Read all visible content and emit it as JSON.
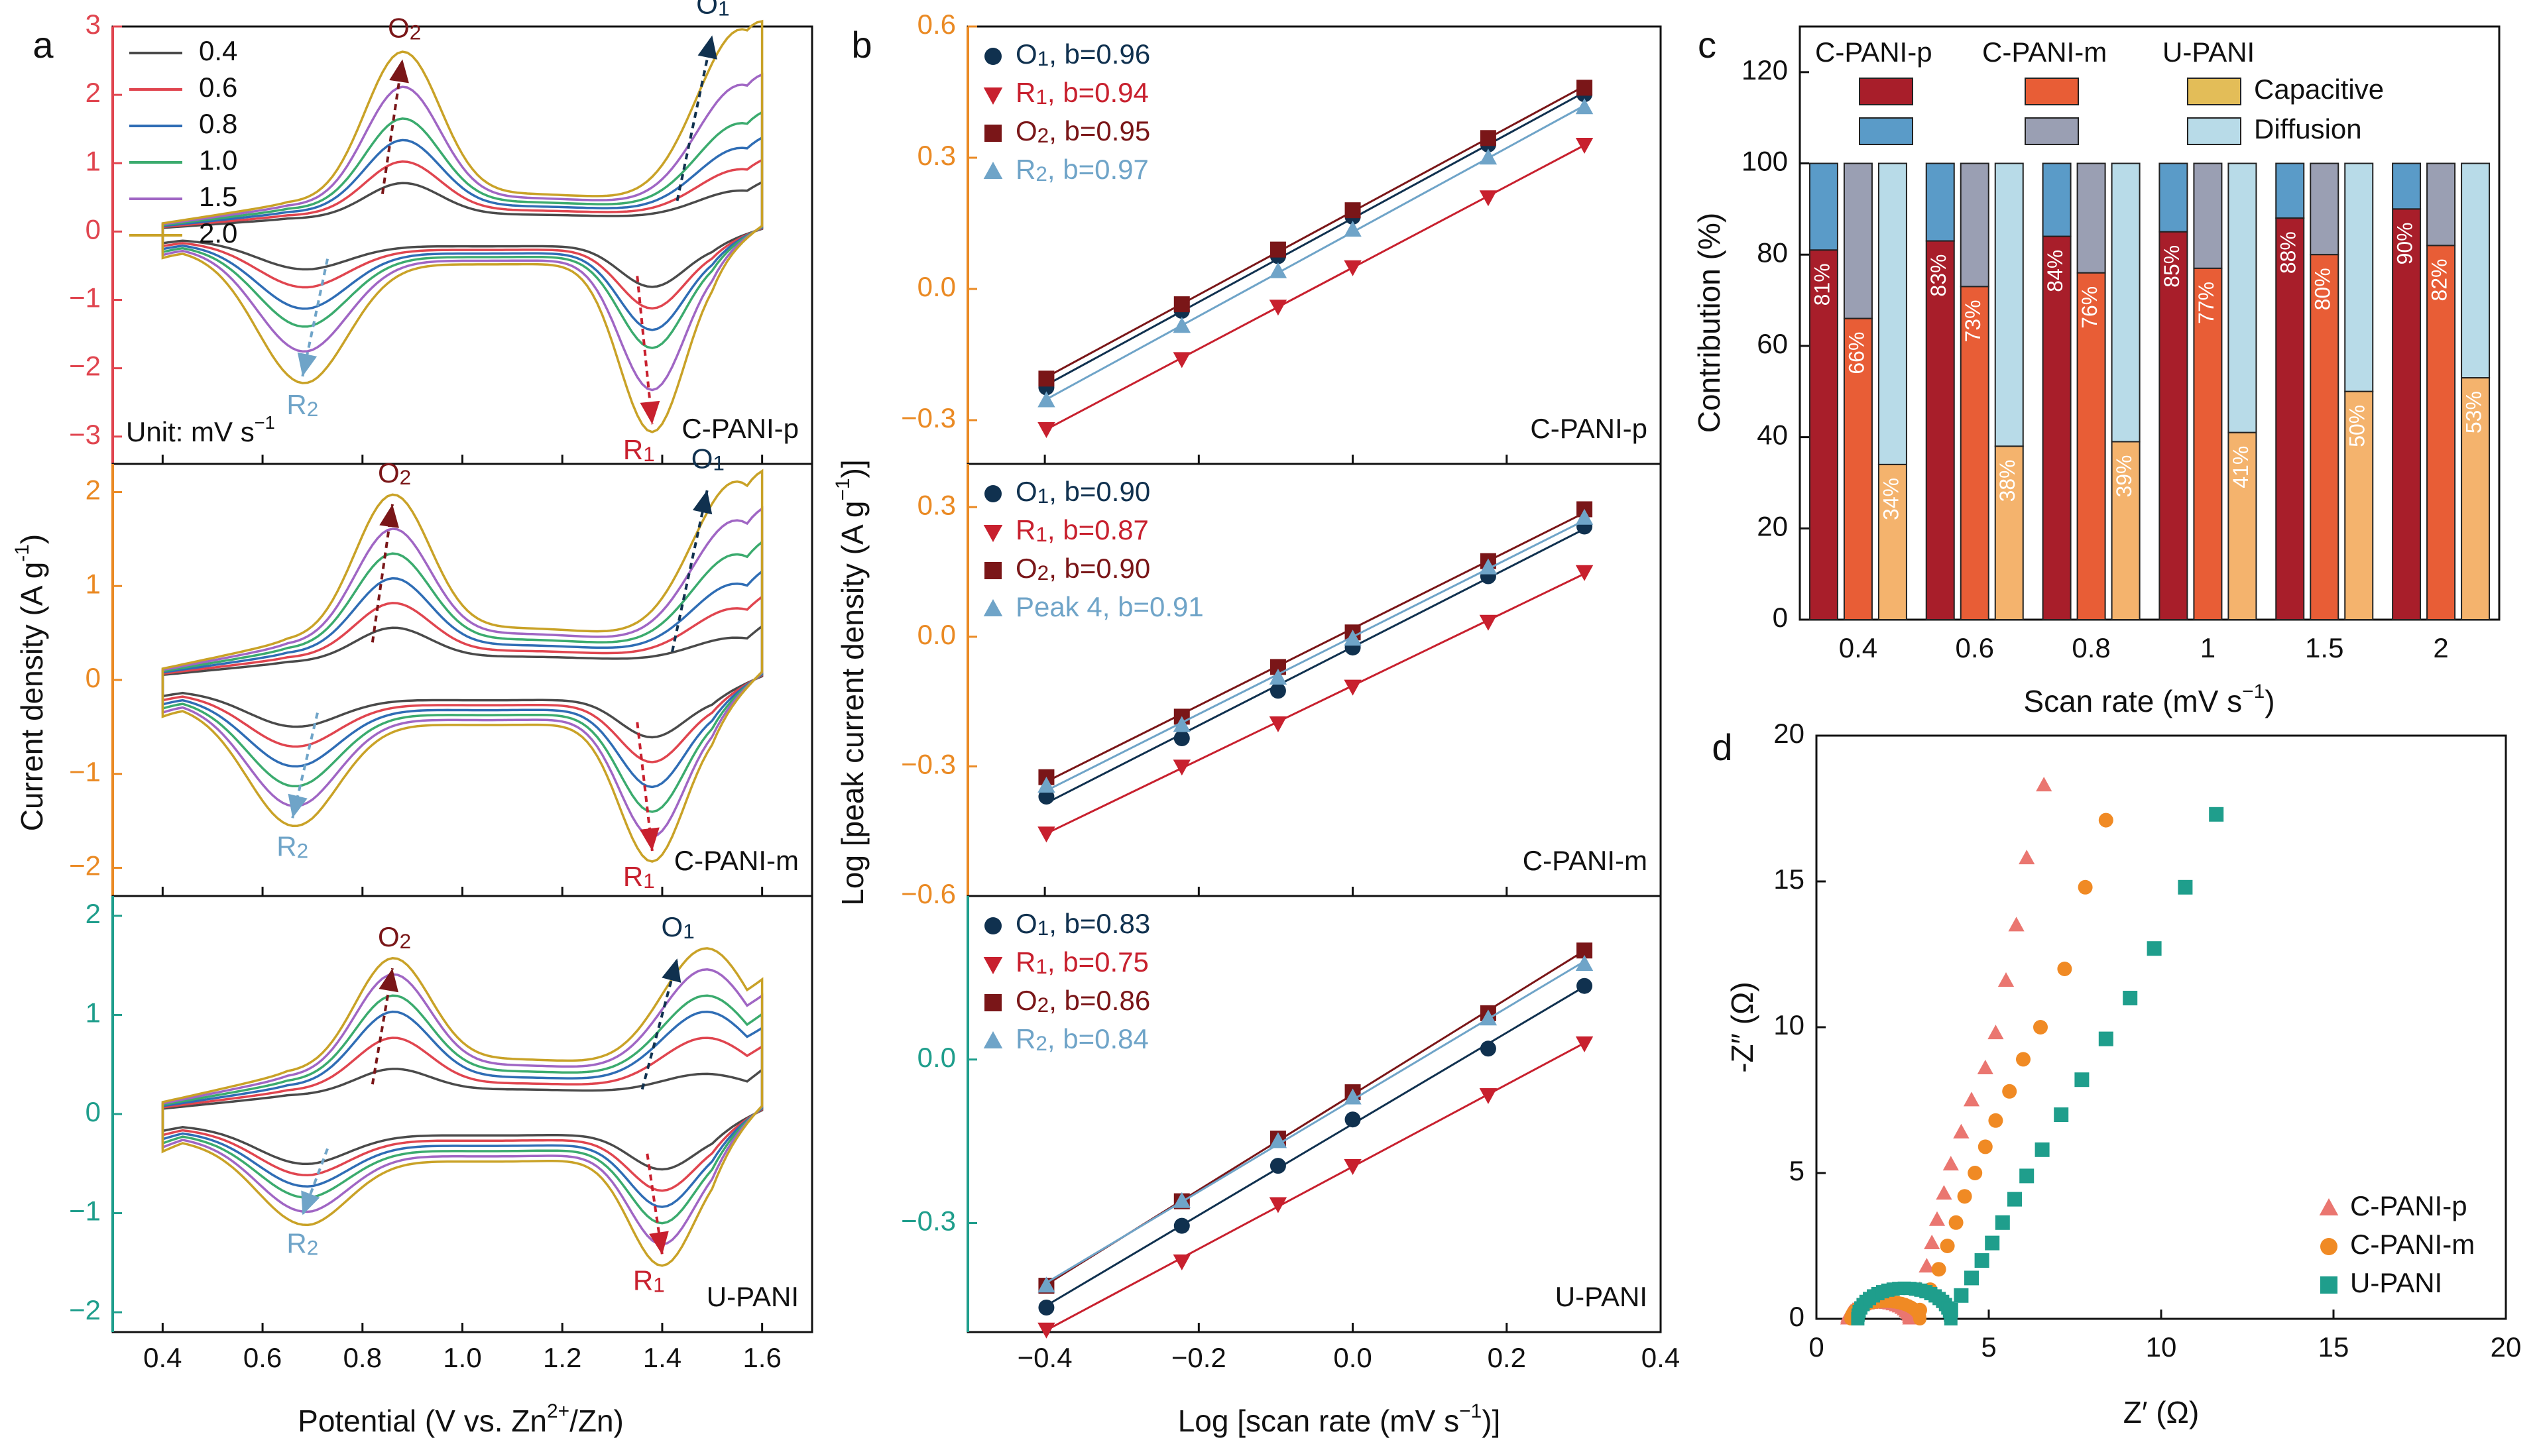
{
  "panel_letters": {
    "a": "a",
    "b": "b",
    "c": "c",
    "d": "d"
  },
  "colors": {
    "cv": {
      "0.4": "#4a4a4a",
      "0.6": "#e0454f",
      "0.8": "#2f6db5",
      "1.0": "#3bab6e",
      "1.5": "#a066c4",
      "2.0": "#c9a227"
    },
    "O1": "#10314f",
    "R1": "#c8202e",
    "O2": "#7a1618",
    "R2": "#6fa4c8",
    "axis_p": "#e0454f",
    "axis_m": "#ea8a24",
    "axis_u": "#1f9e8c",
    "cap_p": "#a81e2a",
    "diff_p": "#5a9bc8",
    "cap_m": "#e85d36",
    "diff_m": "#9a9fb3",
    "cap_u": "#f4b36d",
    "diff_u": "#b8dbe8",
    "legend_cap": "#e3bd58",
    "legend_diff": "#b8dbe8",
    "eis_p": "#ea7670",
    "eis_m": "#f08a24",
    "eis_u": "#1f9e8c"
  },
  "chart_data": [
    {
      "id": "a",
      "type": "line",
      "xlabel": "Potential (V vs. Zn2+/Zn)",
      "xlabel_parts": [
        "Potential (V vs. Zn",
        "2+",
        "/Zn)"
      ],
      "ylabel": "Current density (A g-1)",
      "ylabel_parts": [
        "Current density (A g",
        "-1",
        ")"
      ],
      "xlim": [
        0.3,
        1.7
      ],
      "xticks": [
        "0.4",
        "0.6",
        "0.8",
        "1.0",
        "1.2",
        "1.4",
        "1.6"
      ],
      "legend_title": "Unit: mV s−1",
      "legend_title_parts": [
        "Unit: mV s",
        "−1"
      ],
      "scan_rates": [
        "0.4",
        "0.6",
        "0.8",
        "1.0",
        "1.5",
        "2.0"
      ],
      "subplots": [
        {
          "name": "C-PANI-p",
          "ylim": [
            -3.4,
            3.0
          ],
          "yticks": [
            "-3",
            "-2",
            "-1",
            "0",
            "1",
            "2",
            "3"
          ],
          "O1": {
            "x": 1.6,
            "y": [
              0.55,
              0.85,
              1.15,
              1.5,
              2.05,
              2.85
            ]
          },
          "O2": {
            "x": 0.88,
            "y": [
              0.65,
              0.95,
              1.25,
              1.55,
              2.0,
              2.5
            ]
          },
          "R1": {
            "x": 1.38,
            "y": [
              -0.75,
              -1.05,
              -1.35,
              -1.6,
              -2.2,
              -2.8
            ]
          },
          "R2": {
            "x": 0.68,
            "y": [
              -0.5,
              -0.75,
              -1.05,
              -1.3,
              -1.65,
              -2.1
            ]
          },
          "peaks": {
            "O2": "O2",
            "O1": "O1",
            "R2": "R2",
            "R1": "R1"
          }
        },
        {
          "name": "C-PANI-m",
          "ylim": [
            -2.3,
            2.3
          ],
          "yticks": [
            "-2",
            "-1",
            "0",
            "1",
            "2"
          ],
          "O1": {
            "x": 1.59,
            "y": [
              0.4,
              0.7,
              0.95,
              1.25,
              1.6,
              2.0
            ]
          },
          "O2": {
            "x": 0.86,
            "y": [
              0.5,
              0.75,
              1.0,
              1.25,
              1.5,
              1.85
            ]
          },
          "R1": {
            "x": 1.38,
            "y": [
              -0.55,
              -0.8,
              -1.05,
              -1.3,
              -1.55,
              -1.8
            ]
          },
          "R2": {
            "x": 0.66,
            "y": [
              -0.45,
              -0.65,
              -0.85,
              -1.05,
              -1.25,
              -1.45
            ]
          },
          "peaks": {
            "O2": "O2",
            "O1": "O1",
            "R2": "R2",
            "R1": "R1"
          }
        },
        {
          "name": "U-PANI",
          "ylim": [
            -2.2,
            2.2
          ],
          "yticks": [
            "-2",
            "-1",
            "0",
            "1",
            "2"
          ],
          "O1": {
            "x": 1.53,
            "y": [
              0.35,
              0.7,
              0.95,
              1.1,
              1.35,
              1.55
            ]
          },
          "O2": {
            "x": 0.86,
            "y": [
              0.4,
              0.7,
              0.95,
              1.1,
              1.3,
              1.45
            ]
          },
          "R1": {
            "x": 1.4,
            "y": [
              -0.5,
              -0.7,
              -0.85,
              -1.0,
              -1.2,
              -1.4
            ]
          },
          "R2": {
            "x": 0.68,
            "y": [
              -0.45,
              -0.55,
              -0.65,
              -0.75,
              -0.88,
              -1.0
            ]
          },
          "peaks": {
            "O2": "O2",
            "O1": "O1",
            "R2": "R2",
            "R1": "R1"
          }
        }
      ]
    },
    {
      "id": "b",
      "type": "scatter",
      "xlabel": "Log [scan rate (mV s−1)]",
      "xlabel_parts": [
        "Log [scan rate (mV s",
        "−1",
        ")]"
      ],
      "ylabel": "Log [peak current density (A g−1)]",
      "ylabel_parts": [
        "Log [peak current density (A g",
        "−1",
        ")]"
      ],
      "xlim": [
        -0.5,
        0.4
      ],
      "xticks": [
        "-0.4",
        "-0.2",
        "0.0",
        "0.2",
        "0.4"
      ],
      "x": [
        -0.398,
        -0.222,
        -0.097,
        0.0,
        0.176,
        0.301
      ],
      "subplots": [
        {
          "name": "C-PANI-p",
          "ylim": [
            -0.4,
            0.6
          ],
          "yticks": [
            "-0.3",
            "0.0",
            "0.3",
            "0.6"
          ],
          "series": [
            {
              "key": "O1",
              "label": "O1, b=0.96",
              "values": [
                -0.225,
                -0.05,
                0.075,
                0.165,
                0.33,
                0.445
              ]
            },
            {
              "key": "R1",
              "label": "R1, b=0.94",
              "values": [
                -0.32,
                -0.16,
                -0.04,
                0.05,
                0.21,
                0.33
              ]
            },
            {
              "key": "O2",
              "label": "O2, b=0.95",
              "values": [
                -0.205,
                -0.035,
                0.09,
                0.18,
                0.345,
                0.46
              ]
            },
            {
              "key": "R2",
              "label": "R2, b=0.97",
              "values": [
                -0.255,
                -0.085,
                0.04,
                0.135,
                0.3,
                0.415
              ]
            }
          ]
        },
        {
          "name": "C-PANI-m",
          "ylim": [
            -0.6,
            0.4
          ],
          "yticks": [
            "-0.6",
            "-0.3",
            "0.0",
            "0.3"
          ],
          "series": [
            {
              "key": "O1",
              "label": "O1, b=0.90",
              "values": [
                -0.37,
                -0.235,
                -0.125,
                -0.025,
                0.14,
                0.255
              ]
            },
            {
              "key": "R1",
              "label": "R1, b=0.87",
              "values": [
                -0.455,
                -0.3,
                -0.2,
                -0.115,
                0.035,
                0.15
              ]
            },
            {
              "key": "O2",
              "label": "O2, b=0.90",
              "values": [
                -0.325,
                -0.185,
                -0.07,
                0.01,
                0.175,
                0.295
              ]
            },
            {
              "key": "R2",
              "label": "Peak 4, b=0.91",
              "values": [
                -0.345,
                -0.205,
                -0.095,
                -0.005,
                0.16,
                0.275
              ]
            }
          ]
        },
        {
          "name": "U-PANI",
          "ylim": [
            -0.5,
            0.3
          ],
          "yticks": [
            "-0.3",
            "0.0"
          ],
          "series": [
            {
              "key": "O1",
              "label": "O1, b=0.83",
              "values": [
                -0.455,
                -0.305,
                -0.195,
                -0.11,
                0.02,
                0.135
              ]
            },
            {
              "key": "R1",
              "label": "R1, b=0.75",
              "values": [
                -0.495,
                -0.37,
                -0.265,
                -0.195,
                -0.065,
                0.03
              ]
            },
            {
              "key": "O2",
              "label": "O2, b=0.86",
              "values": [
                -0.415,
                -0.26,
                -0.145,
                -0.06,
                0.085,
                0.2
              ]
            },
            {
              "key": "R2",
              "label": "R2, b=0.84",
              "values": [
                -0.415,
                -0.26,
                -0.15,
                -0.07,
                0.075,
                0.175
              ]
            }
          ]
        }
      ]
    },
    {
      "id": "c",
      "type": "bar",
      "title": "",
      "xlabel": "Scan rate (mV s−1)",
      "xlabel_parts": [
        "Scan rate (mV s",
        "−1",
        ")"
      ],
      "ylabel": "Contribution (%)",
      "ylim": [
        0,
        130
      ],
      "yticks": [
        "0",
        "20",
        "40",
        "60",
        "80",
        "100",
        "120"
      ],
      "categories": [
        "0.4",
        "0.6",
        "0.8",
        "1",
        "1.5",
        "2"
      ],
      "series": [
        {
          "name": "C-PANI-p",
          "capacitive": [
            81,
            83,
            84,
            85,
            88,
            90
          ],
          "labels": [
            "81%",
            "83%",
            "84%",
            "85%",
            "88%",
            "90%"
          ]
        },
        {
          "name": "C-PANI-m",
          "capacitive": [
            66,
            73,
            76,
            77,
            80,
            82
          ],
          "labels": [
            "66%",
            "73%",
            "76%",
            "77%",
            "80%",
            "82%"
          ]
        },
        {
          "name": "U-PANI",
          "capacitive": [
            34,
            38,
            39,
            41,
            50,
            53
          ],
          "labels": [
            "34%",
            "38%",
            "39%",
            "41%",
            "50%",
            "53%"
          ]
        }
      ],
      "legend": {
        "p": "C-PANI-p",
        "m": "C-PANI-m",
        "u": "U-PANI",
        "cap": "Capacitive",
        "diff": "Diffusion"
      }
    },
    {
      "id": "d",
      "type": "scatter",
      "xlabel": "Z′ (Ω)",
      "ylabel": "-Z″ (Ω)",
      "xlim": [
        0,
        20
      ],
      "ylim": [
        0,
        20
      ],
      "xticks": [
        "0",
        "5",
        "10",
        "15",
        "20"
      ],
      "yticks": [
        "0",
        "5",
        "10",
        "15",
        "20"
      ],
      "series": [
        {
          "name": "C-PANI-p",
          "marker": "triangle",
          "arc": {
            "start": 0.9,
            "end": 2.7,
            "height": 0.55
          },
          "tail": [
            [
              2.7,
              0.3
            ],
            [
              3.0,
              1.0
            ],
            [
              3.2,
              1.8
            ],
            [
              3.35,
              2.6
            ],
            [
              3.5,
              3.4
            ],
            [
              3.7,
              4.3
            ],
            [
              3.9,
              5.3
            ],
            [
              4.2,
              6.4
            ],
            [
              4.5,
              7.5
            ],
            [
              4.9,
              8.6
            ],
            [
              5.2,
              9.8
            ],
            [
              5.5,
              11.6
            ],
            [
              5.8,
              13.5
            ],
            [
              6.1,
              15.8
            ],
            [
              6.6,
              18.3
            ]
          ]
        },
        {
          "name": "C-PANI-m",
          "marker": "circle",
          "arc": {
            "start": 1.0,
            "end": 3.0,
            "height": 0.6
          },
          "tail": [
            [
              3.0,
              0.3
            ],
            [
              3.3,
              1.0
            ],
            [
              3.55,
              1.7
            ],
            [
              3.8,
              2.5
            ],
            [
              4.05,
              3.3
            ],
            [
              4.3,
              4.2
            ],
            [
              4.6,
              5.0
            ],
            [
              4.9,
              5.9
            ],
            [
              5.2,
              6.8
            ],
            [
              5.6,
              7.8
            ],
            [
              6.0,
              8.9
            ],
            [
              6.5,
              10.0
            ],
            [
              7.2,
              12.0
            ],
            [
              7.8,
              14.8
            ],
            [
              8.4,
              17.1
            ]
          ]
        },
        {
          "name": "U-PANI",
          "marker": "square",
          "arc": {
            "start": 1.2,
            "end": 3.9,
            "height": 1.05
          },
          "tail": [
            [
              3.9,
              0.3
            ],
            [
              4.2,
              0.8
            ],
            [
              4.5,
              1.4
            ],
            [
              4.8,
              2.0
            ],
            [
              5.1,
              2.6
            ],
            [
              5.4,
              3.3
            ],
            [
              5.75,
              4.1
            ],
            [
              6.1,
              4.9
            ],
            [
              6.55,
              5.8
            ],
            [
              7.1,
              7.0
            ],
            [
              7.7,
              8.2
            ],
            [
              8.4,
              9.6
            ],
            [
              9.1,
              11.0
            ],
            [
              9.8,
              12.7
            ],
            [
              10.7,
              14.8
            ],
            [
              11.6,
              17.3
            ]
          ]
        }
      ]
    }
  ]
}
